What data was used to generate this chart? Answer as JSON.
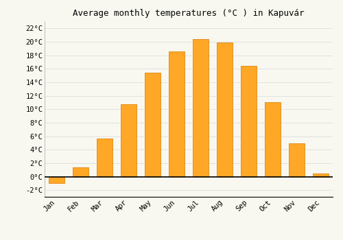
{
  "title": "Average monthly temperatures (°C ) in Kapuvár",
  "months": [
    "Jan",
    "Feb",
    "Mar",
    "Apr",
    "May",
    "Jun",
    "Jul",
    "Aug",
    "Sep",
    "Oct",
    "Nov",
    "Dec"
  ],
  "values": [
    -1.0,
    1.4,
    5.7,
    10.7,
    15.4,
    18.6,
    20.4,
    19.9,
    16.4,
    11.0,
    4.9,
    0.5
  ],
  "bar_color": "#FFA726",
  "bar_edge_color": "#E69020",
  "background_color": "#f8f8f0",
  "grid_color": "#dddddd",
  "ylim": [
    -3,
    23
  ],
  "ytick_vals": [
    -2,
    0,
    2,
    4,
    6,
    8,
    10,
    12,
    14,
    16,
    18,
    20,
    22
  ],
  "title_fontsize": 9,
  "tick_fontsize": 7.5,
  "font_family": "monospace"
}
